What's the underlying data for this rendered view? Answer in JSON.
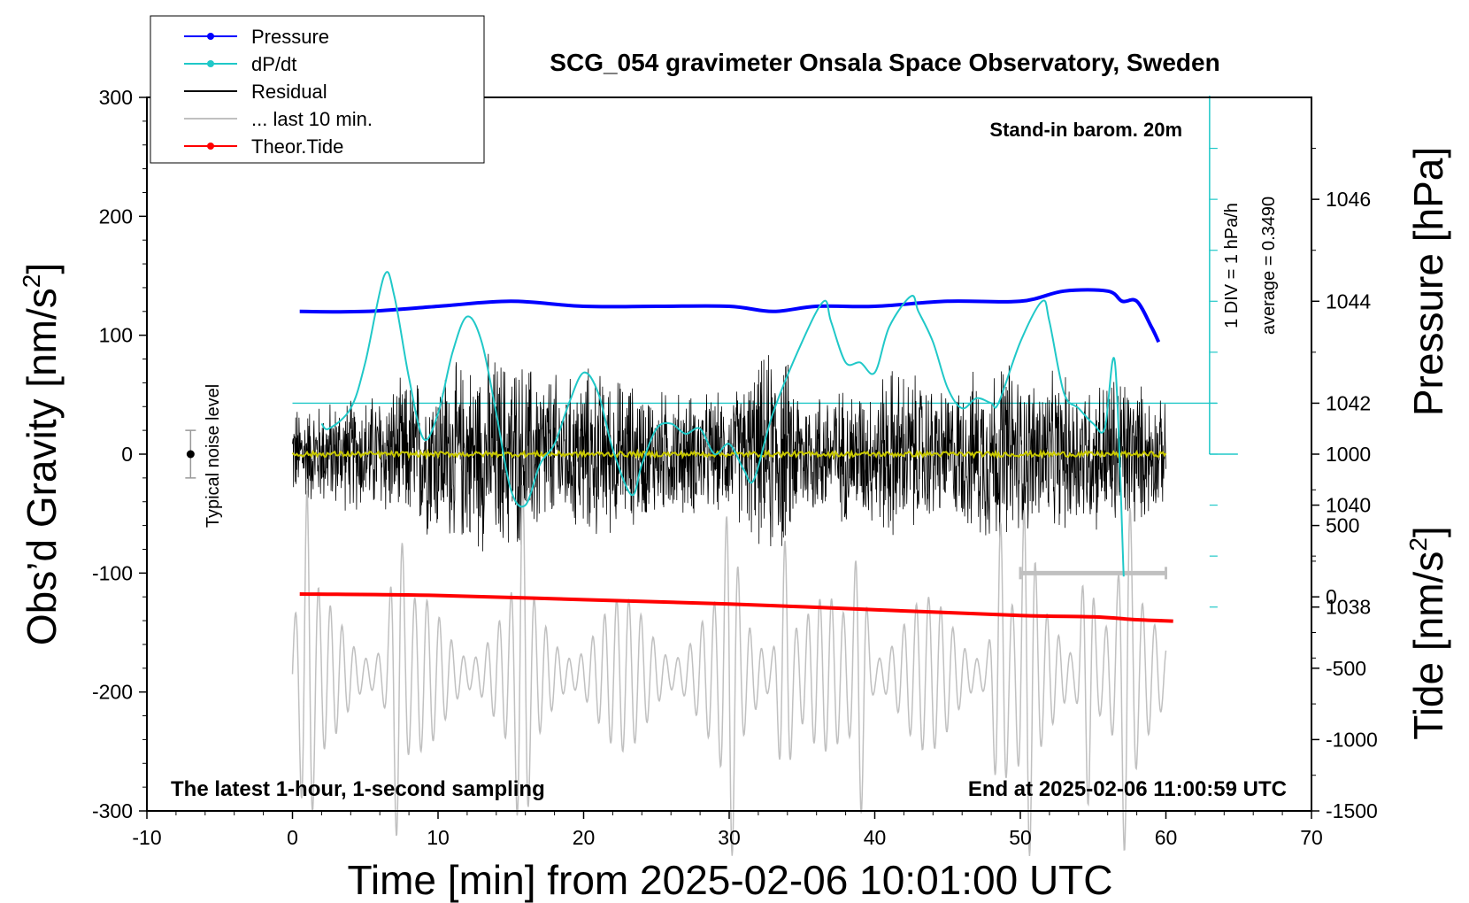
{
  "chart_data": {
    "type": "line",
    "title": "SCG_054 gravimeter Onsala Space Observatory, Sweden",
    "xlabel": "Time [min] from 2025-02-06 10:01:00 UTC",
    "ylabel_left_main": "Obs’d Gravity [nm/s",
    "ylabel_left_sup": "2",
    "ylabel_left_end": "]",
    "ylabel_right_pressure": "Pressure [hPa]",
    "ylabel_right_tide_main": "Tide [nm/s",
    "ylabel_right_tide_sup": "2",
    "ylabel_right_tide_end": "]",
    "xlim": [
      -10,
      70
    ],
    "ylim": [
      -300,
      300
    ],
    "pressure_lim": [
      1034,
      1048
    ],
    "tide_lim": [
      -1500,
      3500
    ],
    "x_ticks": [
      "-10",
      "0",
      "10",
      "20",
      "30",
      "40",
      "50",
      "60",
      "70"
    ],
    "y_ticks": [
      "300",
      "200",
      "100",
      "0",
      "-100",
      "-200",
      "-300"
    ],
    "pressure_ticks": [
      "1046",
      "1044",
      "1042",
      "1040",
      "1038"
    ],
    "tide_ticks": [
      "1000",
      "500",
      "0",
      "-500",
      "-1000",
      "-1500"
    ],
    "annotations": {
      "barom": "Stand-in barom. 20m",
      "div": "1 DIV = 1 hPa/h",
      "average": "average = 0.3490",
      "noise": "Typical noise level",
      "bottom_left": "The latest 1-hour, 1-second sampling",
      "bottom_right": "End at 2025-02-06 11:00:59 UTC"
    },
    "legend": {
      "placement": "top-left",
      "entries": [
        {
          "label": "Pressure",
          "color": "#0000ff",
          "marker": true
        },
        {
          "label": "dP/dt",
          "color": "#20c8c8",
          "marker": true
        },
        {
          "label": "Residual",
          "color": "#000000",
          "marker": false
        },
        {
          "label": "... last 10 min.",
          "color": "#c0c0c0",
          "marker": false
        },
        {
          "label": "Theor.Tide",
          "color": "#ff0000",
          "marker": true
        }
      ]
    },
    "colors": {
      "pressure": "#0000ff",
      "dpdt": "#20c8c8",
      "residual": "#000000",
      "residual_mean": "#c8c800",
      "last10": "#c0c0c0",
      "tide": "#ff0000"
    },
    "dpdt_zero_level_hPa": 1042,
    "dpdt_axis_x": 63,
    "last10_bracket_minutes": [
      50,
      60
    ],
    "noise_bar": {
      "x": -7,
      "center": 0,
      "half_range": 20
    },
    "pressure_series": {
      "x": [
        0.5,
        5,
        10,
        15,
        20,
        25,
        30,
        33,
        36,
        40,
        45,
        50,
        53,
        56,
        57,
        58,
        59,
        59.5
      ],
      "y": [
        1043.8,
        1043.8,
        1043.9,
        1044.0,
        1043.9,
        1043.9,
        1043.9,
        1043.8,
        1043.9,
        1043.9,
        1044.0,
        1044.0,
        1044.2,
        1044.2,
        1044.0,
        1044.0,
        1043.5,
        1043.2
      ]
    },
    "dpdt_series": {
      "x": [
        2,
        2.5,
        4,
        5,
        6.3,
        7,
        8,
        9,
        10,
        11,
        12,
        13,
        14,
        15,
        16,
        17,
        18,
        19,
        20,
        21,
        22,
        23.3,
        24,
        25,
        26,
        27,
        28,
        29,
        30,
        31,
        31.7,
        33,
        35,
        36.5,
        37,
        38,
        39,
        40,
        41,
        42.5,
        43,
        44,
        45,
        46,
        47,
        48,
        48.5,
        50,
        51.5,
        52,
        53,
        54,
        55,
        55.8,
        56.5,
        57.1
      ],
      "y": [
        1041.6,
        1041.5,
        1041.9,
        1042.8,
        1044.5,
        1044.1,
        1042.5,
        1041.3,
        1041.8,
        1043.0,
        1043.7,
        1043.2,
        1041.8,
        1040.3,
        1040.0,
        1040.8,
        1041.2,
        1042.0,
        1042.6,
        1042.2,
        1041.1,
        1040.2,
        1040.8,
        1041.5,
        1041.6,
        1041.4,
        1041.5,
        1041.0,
        1041.2,
        1040.7,
        1040.5,
        1041.8,
        1043.2,
        1044.0,
        1043.6,
        1042.8,
        1042.8,
        1042.6,
        1043.5,
        1044.1,
        1043.8,
        1043.2,
        1042.3,
        1041.9,
        1042.1,
        1042.0,
        1042.0,
        1043.2,
        1044.0,
        1043.6,
        1042.2,
        1041.9,
        1041.6,
        1041.5,
        1042.8,
        1038.6
      ]
    },
    "residual_envelope": {
      "x": [
        0,
        5,
        9,
        14,
        15.5,
        19,
        20,
        25,
        30,
        33.3,
        35,
        40,
        41,
        45,
        49,
        50,
        55,
        57,
        60
      ],
      "amp": [
        45,
        55,
        75,
        95,
        90,
        70,
        82,
        60,
        55,
        105,
        60,
        65,
        85,
        60,
        95,
        75,
        70,
        80,
        45
      ]
    },
    "residual_mean_offset": 0,
    "last10_pattern": {
      "center": -185,
      "amplitude": 65,
      "spike_amp_max": 160,
      "spike_times": [
        1,
        7.2,
        15.8,
        30.1,
        33.8,
        39,
        48.6,
        50.5,
        54.6,
        57.3
      ]
    },
    "tide_series": {
      "x": [
        0.5,
        10,
        20,
        30,
        40,
        50,
        55,
        58,
        60.5
      ],
      "y": [
        20,
        10,
        -20,
        -50,
        -90,
        -130,
        -140,
        -160,
        -170
      ]
    }
  }
}
